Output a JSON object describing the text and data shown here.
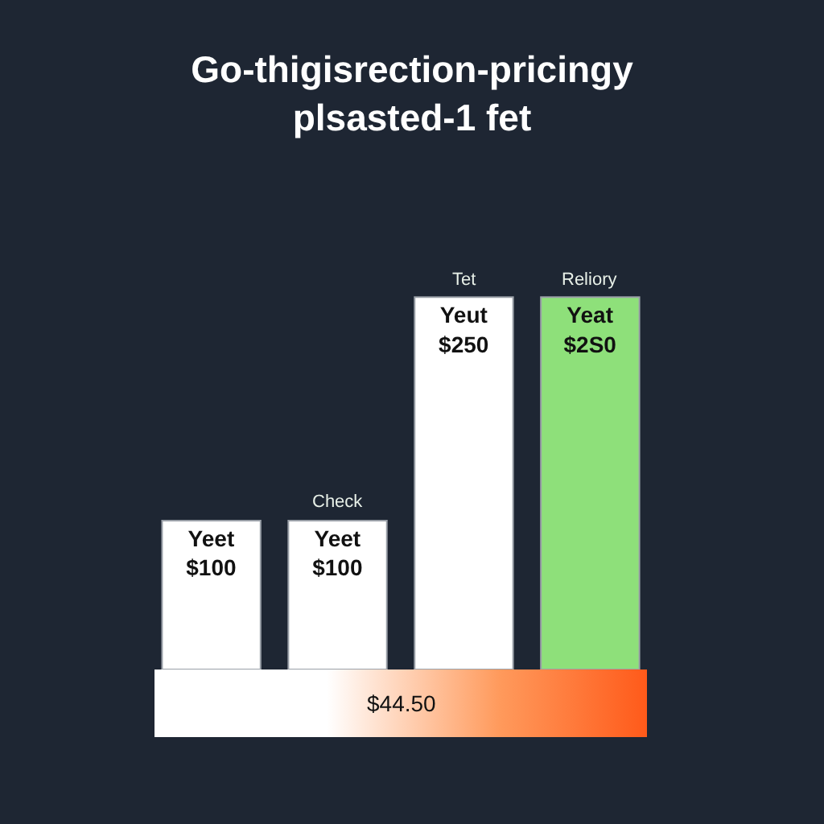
{
  "chart_data": {
    "type": "bar",
    "title": "Go-thigisrection-pricingy\nplsasted-1 fet",
    "categories": [
      null,
      "Check",
      "Tet",
      "Reliory"
    ],
    "values": [
      100,
      100,
      250,
      250
    ],
    "colors": [
      "#ffffff",
      "#ffffff",
      "#ffffff",
      "#8ee07a"
    ],
    "value_labels": [
      "Yeet\n$100",
      "Yeet\n$100",
      "Yeut\n$250",
      "Yeat\n$2S0"
    ],
    "annotations": [
      "$44.50"
    ]
  }
}
